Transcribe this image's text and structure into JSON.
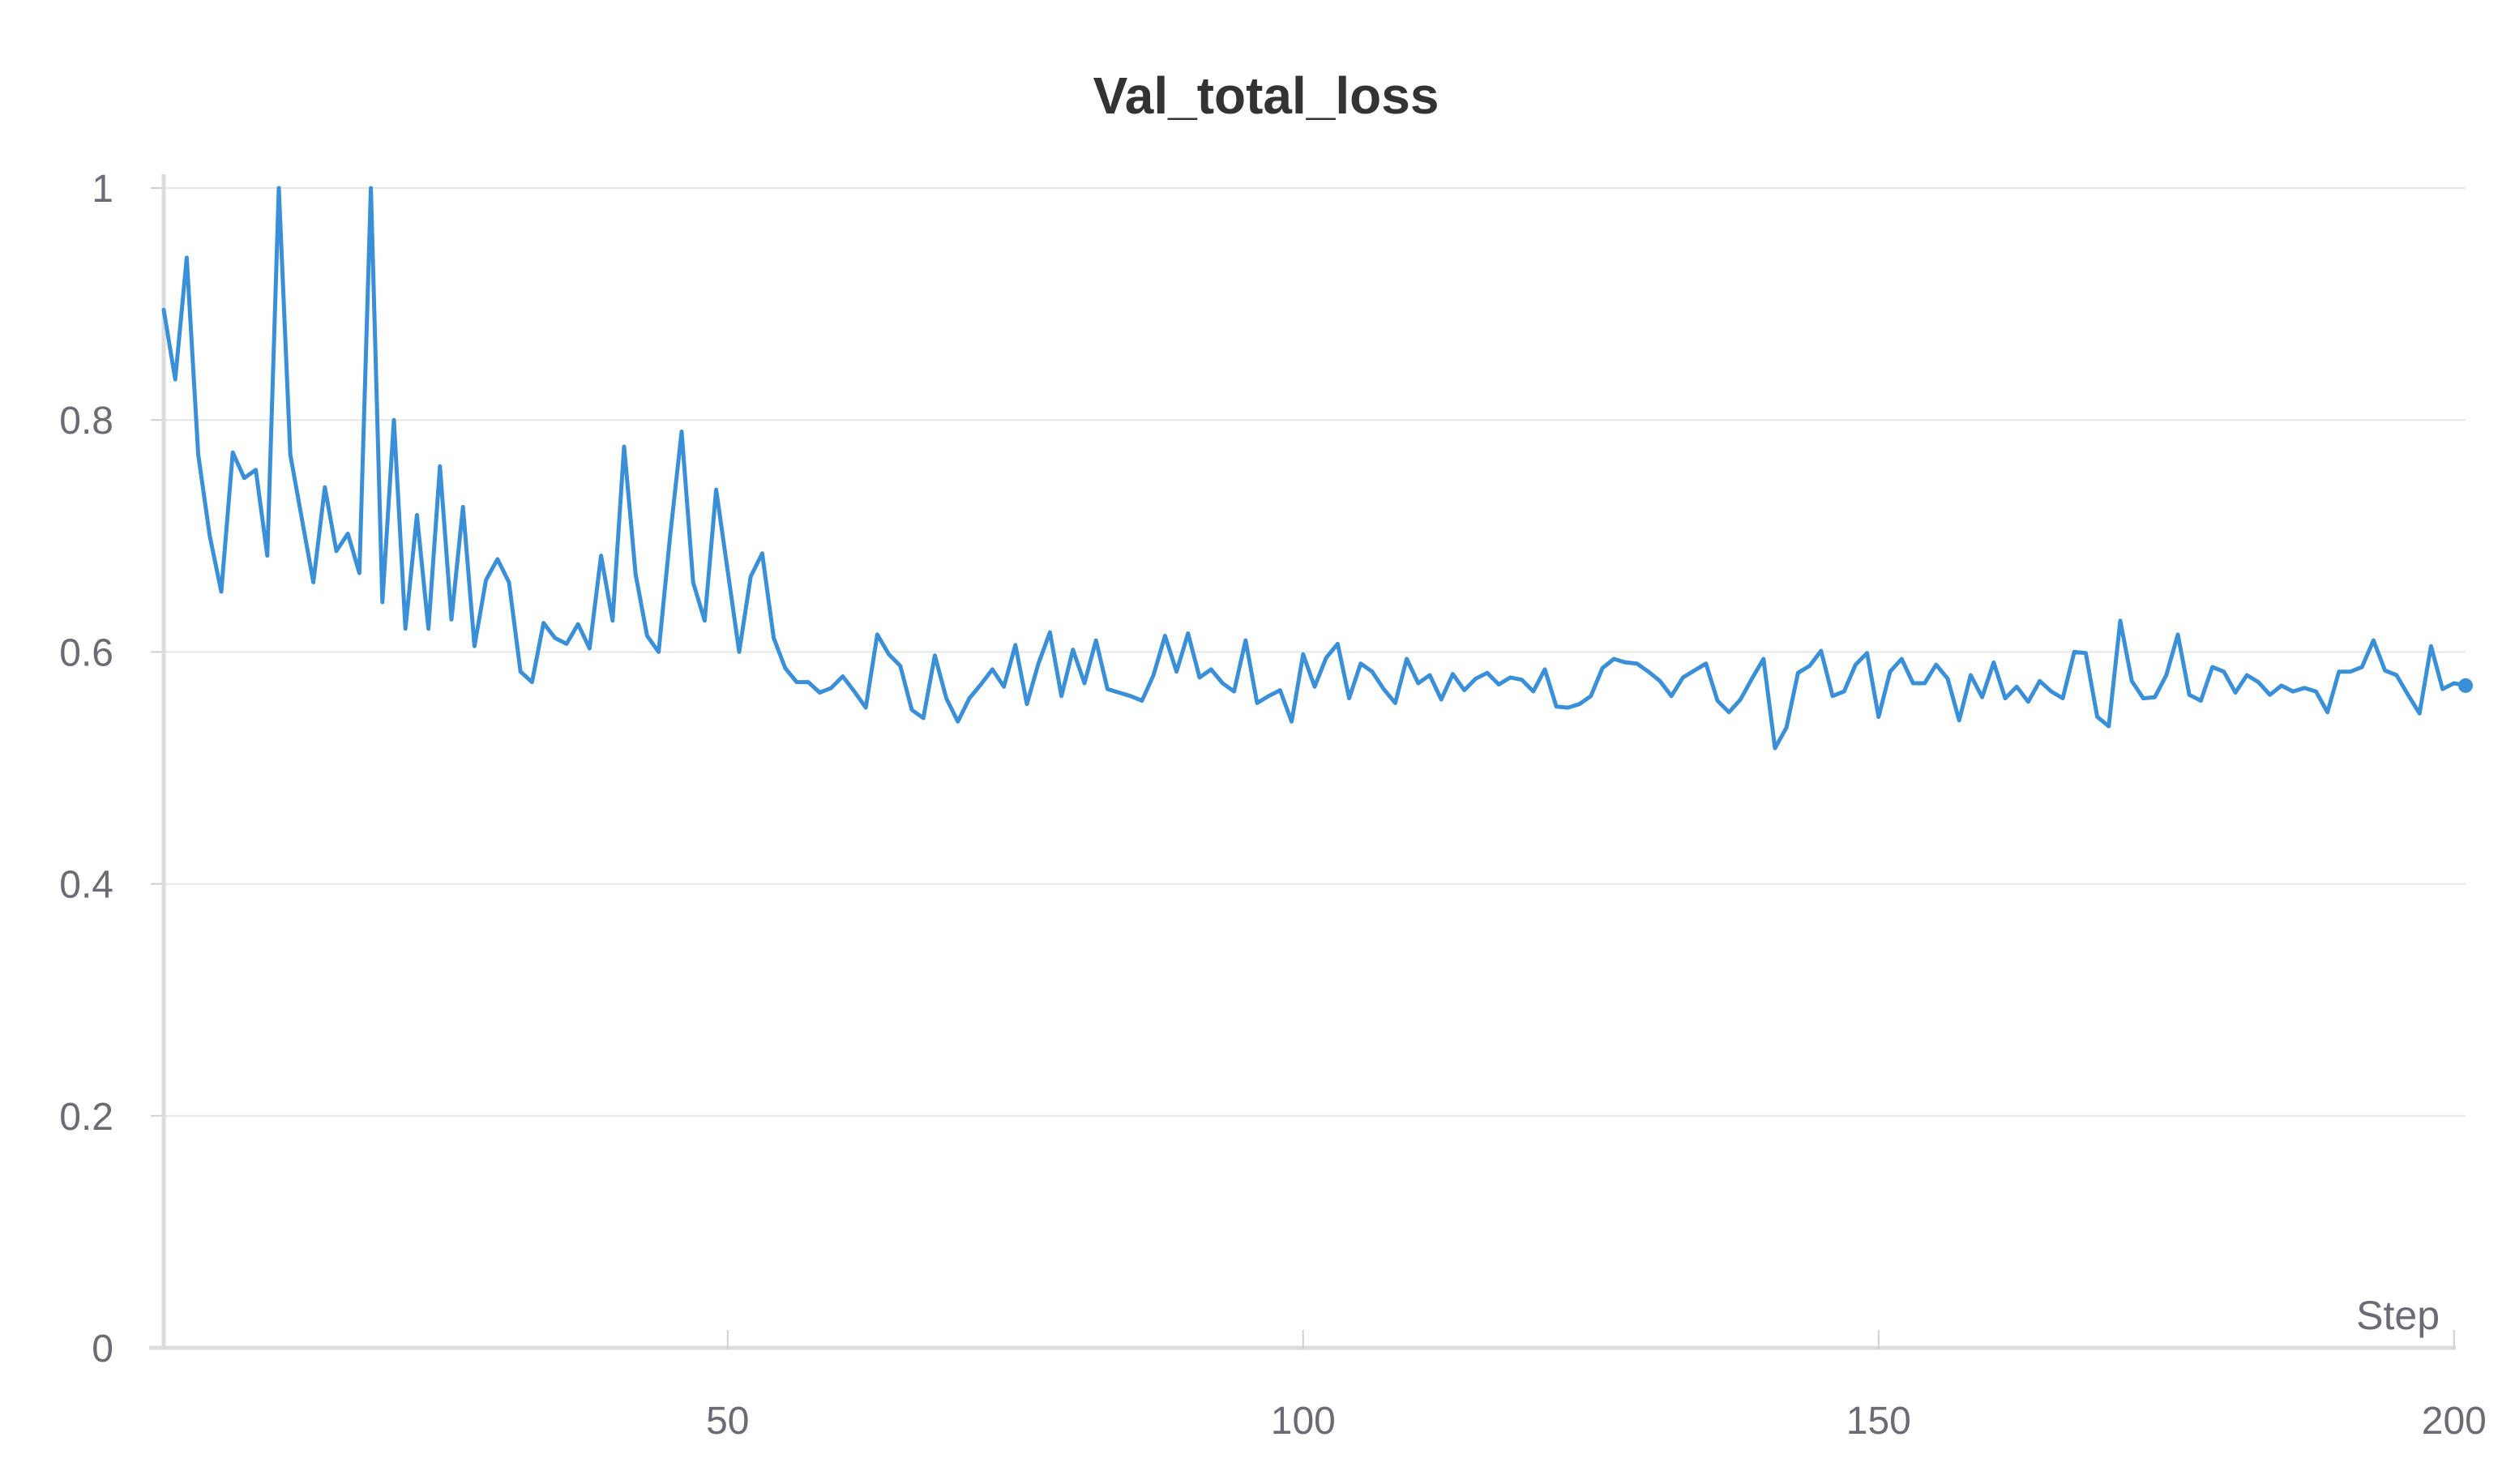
{
  "chart_data": {
    "type": "line",
    "title": "Val_total_loss",
    "xlabel": "Step",
    "ylabel": "",
    "xlim": [
      1,
      201
    ],
    "ylim": [
      0,
      1
    ],
    "grid": true,
    "x_ticks": [
      {
        "value": 50,
        "label": "50"
      },
      {
        "value": 100,
        "label": "100"
      },
      {
        "value": 150,
        "label": "150"
      },
      {
        "value": 200,
        "label": "200"
      }
    ],
    "y_ticks": [
      {
        "value": 0,
        "label": "0"
      },
      {
        "value": 0.2,
        "label": "0.2"
      },
      {
        "value": 0.4,
        "label": "0.4"
      },
      {
        "value": 0.6,
        "label": "0.6"
      },
      {
        "value": 0.8,
        "label": "0.8"
      },
      {
        "value": 1,
        "label": "1"
      }
    ],
    "series": [
      {
        "color": "#3a8fd9",
        "x": [
          1,
          2,
          3,
          4,
          5,
          6,
          7,
          8,
          9,
          10,
          11,
          12,
          13,
          14,
          15,
          16,
          17,
          18,
          19,
          20,
          21,
          22,
          23,
          24,
          25,
          26,
          27,
          28,
          29,
          30,
          31,
          32,
          33,
          34,
          35,
          36,
          37,
          38,
          39,
          40,
          41,
          42,
          43,
          44,
          45,
          46,
          47,
          48,
          49,
          50,
          51,
          52,
          53,
          54,
          55,
          56,
          57,
          58,
          59,
          60,
          61,
          62,
          63,
          64,
          65,
          66,
          67,
          68,
          69,
          70,
          71,
          72,
          73,
          74,
          75,
          76,
          77,
          78,
          79,
          80,
          81,
          82,
          83,
          84,
          85,
          86,
          87,
          88,
          89,
          90,
          91,
          92,
          93,
          94,
          95,
          96,
          97,
          98,
          99,
          100,
          101,
          102,
          103,
          104,
          105,
          106,
          107,
          108,
          109,
          110,
          111,
          112,
          113,
          114,
          115,
          116,
          117,
          118,
          119,
          120,
          121,
          122,
          123,
          124,
          125,
          126,
          127,
          128,
          129,
          130,
          131,
          132,
          133,
          134,
          135,
          136,
          137,
          138,
          139,
          140,
          141,
          142,
          143,
          144,
          145,
          146,
          147,
          148,
          149,
          150,
          151,
          152,
          153,
          154,
          155,
          156,
          157,
          158,
          159,
          160,
          161,
          162,
          163,
          164,
          165,
          166,
          167,
          168,
          169,
          170,
          171,
          172,
          173,
          174,
          175,
          176,
          177,
          178,
          179,
          180,
          181,
          182,
          183,
          184,
          185,
          186,
          187,
          188,
          189,
          190,
          191,
          192,
          193,
          194,
          195,
          196,
          197,
          198,
          199,
          200,
          201
        ],
        "y": [
          0.895,
          0.835,
          0.94,
          0.77,
          0.7,
          0.652,
          0.772,
          0.75,
          0.757,
          0.683,
          1.0,
          0.77,
          0.715,
          0.66,
          0.742,
          0.687,
          0.702,
          0.668,
          1.0,
          0.643,
          0.8,
          0.62,
          0.718,
          0.62,
          0.76,
          0.628,
          0.725,
          0.605,
          0.662,
          0.68,
          0.66,
          0.583,
          0.574,
          0.625,
          0.612,
          0.607,
          0.624,
          0.603,
          0.683,
          0.627,
          0.777,
          0.667,
          0.614,
          0.6,
          0.7,
          0.79,
          0.66,
          0.627,
          0.74,
          0.67,
          0.6,
          0.665,
          0.685,
          0.612,
          0.586,
          0.574,
          0.574,
          0.565,
          0.569,
          0.579,
          0.566,
          0.552,
          0.615,
          0.598,
          0.588,
          0.55,
          0.543,
          0.597,
          0.56,
          0.54,
          0.56,
          0.572,
          0.585,
          0.57,
          0.606,
          0.555,
          0.59,
          0.617,
          0.562,
          0.602,
          0.573,
          0.61,
          0.568,
          0.565,
          0.562,
          0.558,
          0.58,
          0.614,
          0.583,
          0.616,
          0.578,
          0.585,
          0.573,
          0.566,
          0.61,
          0.556,
          0.562,
          0.567,
          0.54,
          0.598,
          0.57,
          0.595,
          0.607,
          0.56,
          0.59,
          0.583,
          0.568,
          0.556,
          0.594,
          0.573,
          0.58,
          0.559,
          0.581,
          0.567,
          0.577,
          0.582,
          0.572,
          0.578,
          0.576,
          0.566,
          0.585,
          0.553,
          0.552,
          0.555,
          0.562,
          0.586,
          0.594,
          0.591,
          0.59,
          0.583,
          0.575,
          0.562,
          0.578,
          0.584,
          0.59,
          0.558,
          0.548,
          0.559,
          0.577,
          0.594,
          0.517,
          0.535,
          0.582,
          0.588,
          0.601,
          0.562,
          0.566,
          0.589,
          0.599,
          0.544,
          0.583,
          0.594,
          0.573,
          0.573,
          0.589,
          0.577,
          0.541,
          0.58,
          0.561,
          0.591,
          0.56,
          0.57,
          0.557,
          0.575,
          0.566,
          0.56,
          0.6,
          0.599,
          0.544,
          0.536,
          0.627,
          0.575,
          0.56,
          0.561,
          0.58,
          0.615,
          0.563,
          0.558,
          0.587,
          0.583,
          0.565,
          0.58,
          0.574,
          0.563,
          0.571,
          0.566,
          0.569,
          0.566,
          0.548,
          0.583,
          0.583,
          0.587,
          0.61,
          0.584,
          0.58,
          0.563,
          0.547,
          0.605,
          0.568,
          0.573,
          0.571
        ]
      }
    ]
  }
}
